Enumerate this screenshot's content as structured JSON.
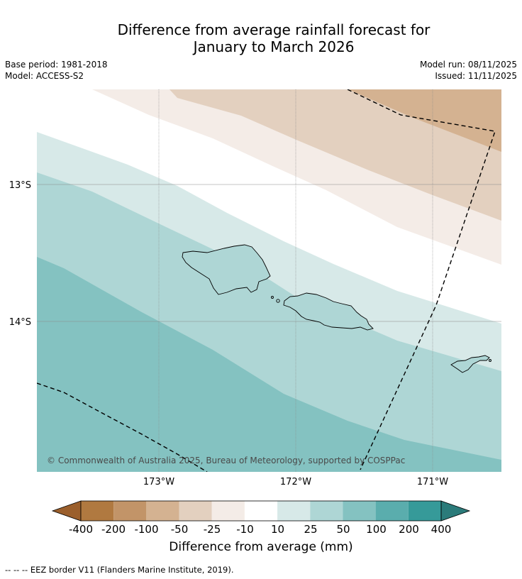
{
  "title_line1": "Difference from average rainfall forecast for",
  "title_line2": "January to March 2026",
  "meta_left": {
    "base_period": "Base period: 1981-2018",
    "model": "Model: ACCESS-S2"
  },
  "meta_right": {
    "model_run": "Model run: 08/11/2025",
    "issued": "Issued: 11/11/2025"
  },
  "map": {
    "lat_labels": [
      "13°S",
      "14°S"
    ],
    "lon_labels": [
      "173°W",
      "172°W",
      "171°W"
    ],
    "copyright": "© Commonwealth of Australia 2025, Bureau of Meteorology, supported by COSPPac"
  },
  "colorbar": {
    "title": "Difference from average (mm)",
    "ticks": [
      "-400",
      "-200",
      "-100",
      "-50",
      "-25",
      "-10",
      "10",
      "25",
      "50",
      "100",
      "200",
      "400"
    ],
    "colors": [
      "#9b5f2c",
      "#b07940",
      "#c29468",
      "#d4b291",
      "#e3d0bf",
      "#f4ece7",
      "#ffffff",
      "#d7e9e8",
      "#aed6d5",
      "#84c2c1",
      "#5aadad",
      "#369a99",
      "#2b7b7a"
    ]
  },
  "footnote": "-- -- -- EEZ border V11 (Flanders Marine Institute, 2019)."
}
